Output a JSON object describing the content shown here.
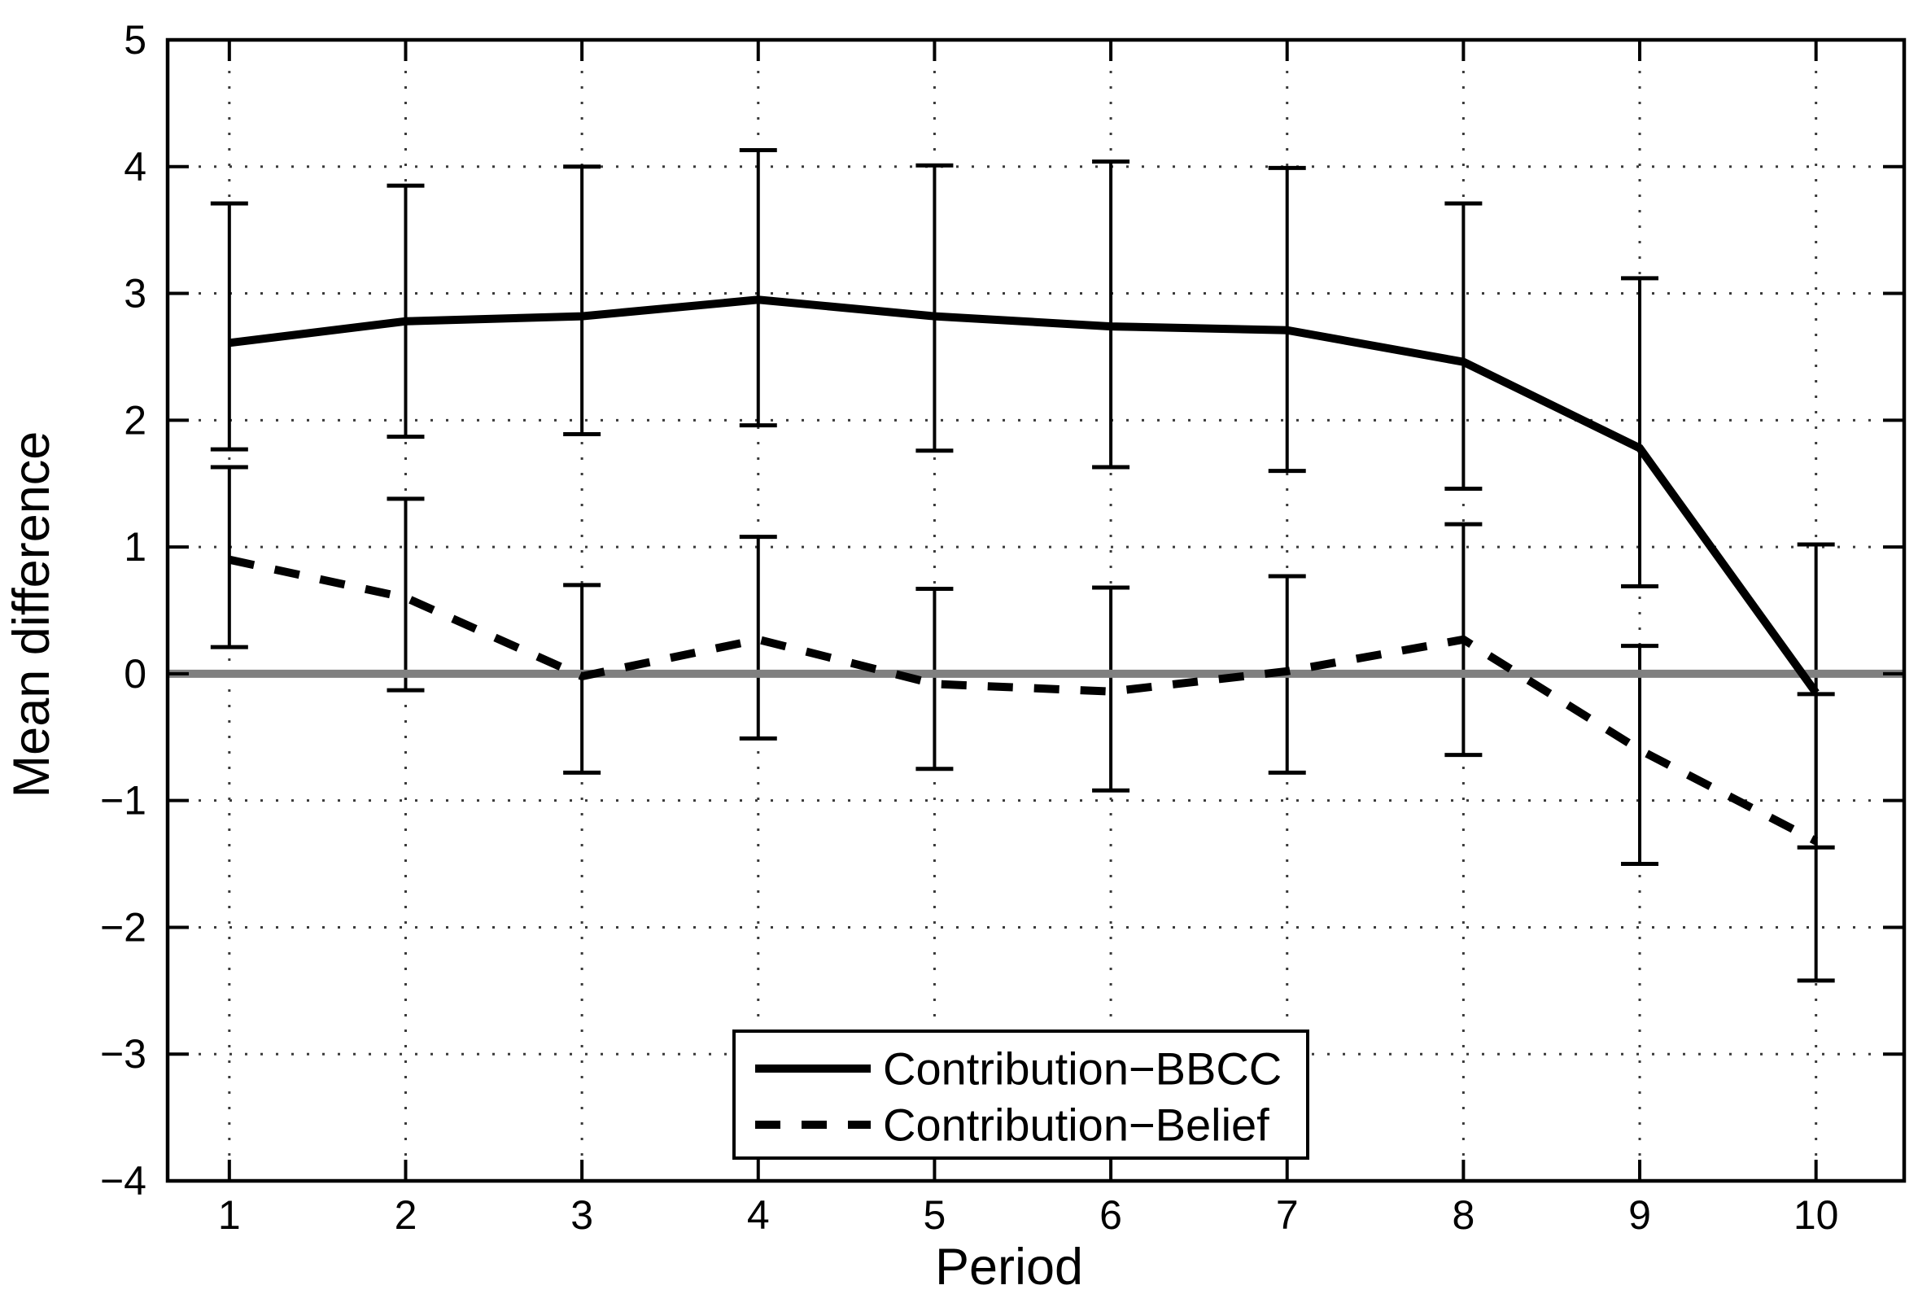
{
  "figure": {
    "background_color": "#ffffff",
    "line_color": "#000000",
    "zero_line_color": "#808080",
    "grid_color": "#3a3a3a"
  },
  "chart_data": {
    "type": "line",
    "title": "",
    "xlabel": "Period",
    "ylabel": "Mean difference",
    "x": [
      1,
      2,
      3,
      4,
      5,
      6,
      7,
      8,
      9,
      10
    ],
    "xlim": [
      0.65,
      10.5
    ],
    "ylim": [
      -4,
      5
    ],
    "xticks": [
      1,
      2,
      3,
      4,
      5,
      6,
      7,
      8,
      9,
      10
    ],
    "yticks": [
      -4,
      -3,
      -2,
      -1,
      0,
      1,
      2,
      3,
      4,
      5
    ],
    "xtick_labels": [
      "1",
      "2",
      "3",
      "4",
      "5",
      "6",
      "7",
      "8",
      "9",
      "10"
    ],
    "ytick_labels": [
      "−4",
      "−3",
      "−2",
      "−1",
      "0",
      "1",
      "2",
      "3",
      "4",
      "5"
    ],
    "grid": "dotted",
    "legend_position": "south-inside",
    "reference_line": {
      "y": 0,
      "color": "#808080"
    },
    "series": [
      {
        "name": "Contribution−BBCC",
        "line_style": "solid",
        "color": "#000000",
        "values": [
          2.61,
          2.78,
          2.82,
          2.95,
          2.82,
          2.74,
          2.71,
          2.46,
          1.78,
          -0.15
        ],
        "err_upper": [
          3.71,
          3.85,
          4.0,
          4.13,
          4.01,
          4.04,
          3.99,
          3.71,
          3.12,
          1.02
        ],
        "err_lower": [
          1.77,
          1.87,
          1.89,
          1.96,
          1.76,
          1.63,
          1.6,
          1.46,
          0.69,
          -1.37
        ]
      },
      {
        "name": "Contribution−Belief",
        "line_style": "dashed",
        "color": "#000000",
        "values": [
          0.9,
          0.6,
          -0.02,
          0.27,
          -0.08,
          -0.14,
          0.02,
          0.27,
          -0.6,
          -1.32
        ],
        "err_upper": [
          1.63,
          1.38,
          0.7,
          1.08,
          0.67,
          0.68,
          0.77,
          1.18,
          0.22,
          -0.16
        ],
        "err_lower": [
          0.21,
          -0.13,
          -0.78,
          -0.51,
          -0.75,
          -0.92,
          -0.78,
          -0.64,
          -1.5,
          -2.42
        ]
      }
    ]
  }
}
